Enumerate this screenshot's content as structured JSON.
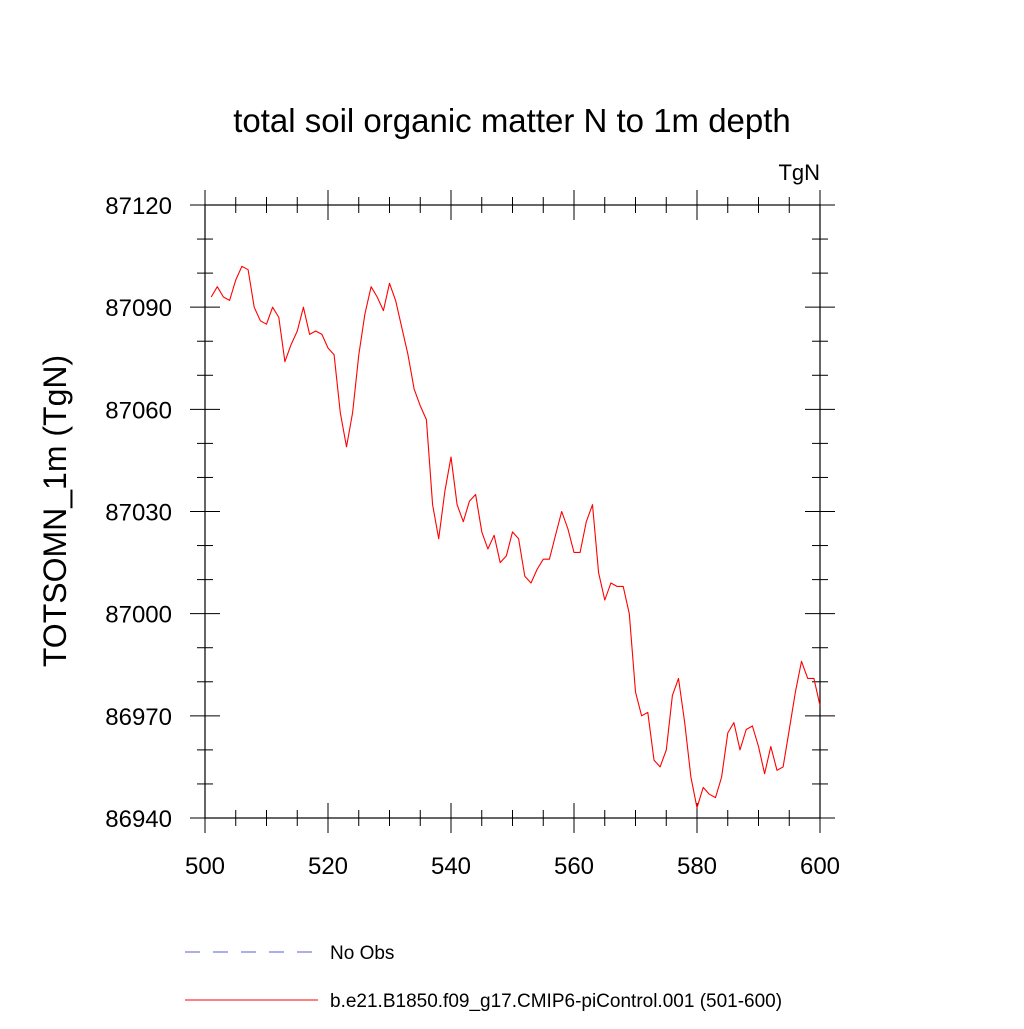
{
  "chart_data": {
    "type": "line",
    "title": "total soil organic matter N to 1m depth",
    "units_label": "TgN",
    "xlabel": "",
    "ylabel": "TOTSOMN_1m  (TgN)",
    "xlim": [
      500,
      600
    ],
    "ylim": [
      86940,
      87120
    ],
    "x_major_ticks": [
      500,
      520,
      540,
      560,
      580,
      600
    ],
    "x_tick_labels": [
      "500",
      "520",
      "540",
      "560",
      "580",
      "600"
    ],
    "x_minor_step": 5,
    "y_major_ticks": [
      86940,
      86970,
      87000,
      87030,
      87060,
      87090,
      87120
    ],
    "y_tick_labels": [
      "86940",
      "86970",
      "87000",
      "87030",
      "87060",
      "87090",
      "87120"
    ],
    "y_minor_step": 10,
    "grid": false,
    "legend": [
      {
        "label": "No Obs",
        "color": "#5b5bd6",
        "style": "dashed"
      },
      {
        "label": "b.e21.B1850.f09_g17.CMIP6-piControl.001 (501-600)",
        "color": "#ff0000",
        "style": "solid"
      }
    ],
    "series": [
      {
        "name": "b.e21.B1850.f09_g17.CMIP6-piControl.001 (501-600)",
        "color": "#ff0000",
        "x": [
          501,
          502,
          503,
          504,
          505,
          506,
          507,
          508,
          509,
          510,
          511,
          512,
          513,
          514,
          515,
          516,
          517,
          518,
          519,
          520,
          521,
          522,
          523,
          524,
          525,
          526,
          527,
          528,
          529,
          530,
          531,
          532,
          533,
          534,
          535,
          536,
          537,
          538,
          539,
          540,
          541,
          542,
          543,
          544,
          545,
          546,
          547,
          548,
          549,
          550,
          551,
          552,
          553,
          554,
          555,
          556,
          557,
          558,
          559,
          560,
          561,
          562,
          563,
          564,
          565,
          566,
          567,
          568,
          569,
          570,
          571,
          572,
          573,
          574,
          575,
          576,
          577,
          578,
          579,
          580,
          581,
          582,
          583,
          584,
          585,
          586,
          587,
          588,
          589,
          590,
          591,
          592,
          593,
          594,
          595,
          596,
          597,
          598,
          599,
          600
        ],
        "values": [
          87093,
          87096,
          87093,
          87092,
          87098,
          87102,
          87101,
          87090,
          87086,
          87085,
          87090,
          87087,
          87074,
          87079,
          87083,
          87090,
          87082,
          87083,
          87082,
          87078,
          87076,
          87059,
          87049,
          87059,
          87076,
          87088,
          87096,
          87093,
          87089,
          87097,
          87092,
          87084,
          87076,
          87066,
          87061,
          87057,
          87032,
          87022,
          87036,
          87046,
          87032,
          87027,
          87033,
          87035,
          87024,
          87019,
          87023,
          87015,
          87017,
          87024,
          87022,
          87011,
          87009,
          87013,
          87016,
          87016,
          87023,
          87030,
          87025,
          87018,
          87018,
          87027,
          87032,
          87012,
          87004,
          87009,
          87008,
          87008,
          87000,
          86977,
          86970,
          86971,
          86957,
          86955,
          86960,
          86976,
          86981,
          86968,
          86952,
          86943,
          86949,
          86947,
          86946,
          86952,
          86965,
          86968,
          86960,
          86966,
          86967,
          86961,
          86953,
          86961,
          86954,
          86955,
          86966,
          86977,
          86986,
          86981,
          86981,
          86973
        ]
      }
    ]
  }
}
